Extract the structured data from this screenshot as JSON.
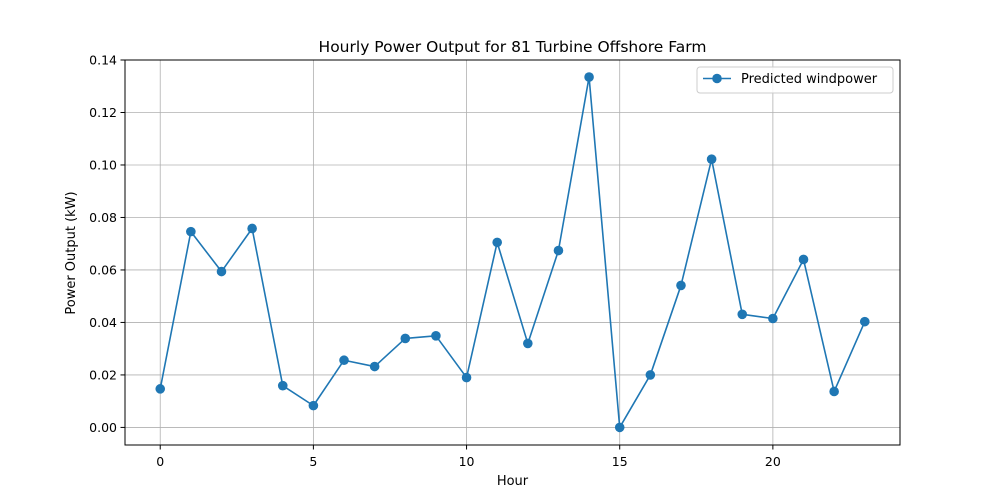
{
  "chart_data": {
    "type": "line",
    "title": "Hourly Power Output for 81 Turbine Offshore Farm",
    "xlabel": "Hour",
    "ylabel": "Power Output (kW)",
    "xlim": [
      -1.15,
      24.15
    ],
    "ylim": [
      -0.0067,
      0.14
    ],
    "xticks": [
      0,
      5,
      10,
      15,
      20
    ],
    "yticks": [
      0.0,
      0.02,
      0.04,
      0.06,
      0.08,
      0.1,
      0.12,
      0.14
    ],
    "ytick_labels": [
      "0.00",
      "0.02",
      "0.04",
      "0.06",
      "0.08",
      "0.10",
      "0.12",
      "0.14"
    ],
    "grid": true,
    "legend_position": "top-right",
    "series": [
      {
        "name": "Predicted windpower",
        "color": "#1f77b4",
        "marker": "circle",
        "x": [
          0,
          1,
          2,
          3,
          4,
          5,
          6,
          7,
          8,
          9,
          10,
          11,
          12,
          13,
          14,
          15,
          16,
          17,
          18,
          19,
          20,
          21,
          22,
          23
        ],
        "y": [
          0.0147,
          0.0746,
          0.0594,
          0.0758,
          0.0159,
          0.0083,
          0.0256,
          0.0232,
          0.0339,
          0.0349,
          0.019,
          0.0705,
          0.032,
          0.0674,
          0.1335,
          0.0,
          0.02,
          0.0541,
          0.1022,
          0.0431,
          0.0415,
          0.064,
          0.0137,
          0.0403
        ]
      }
    ]
  }
}
